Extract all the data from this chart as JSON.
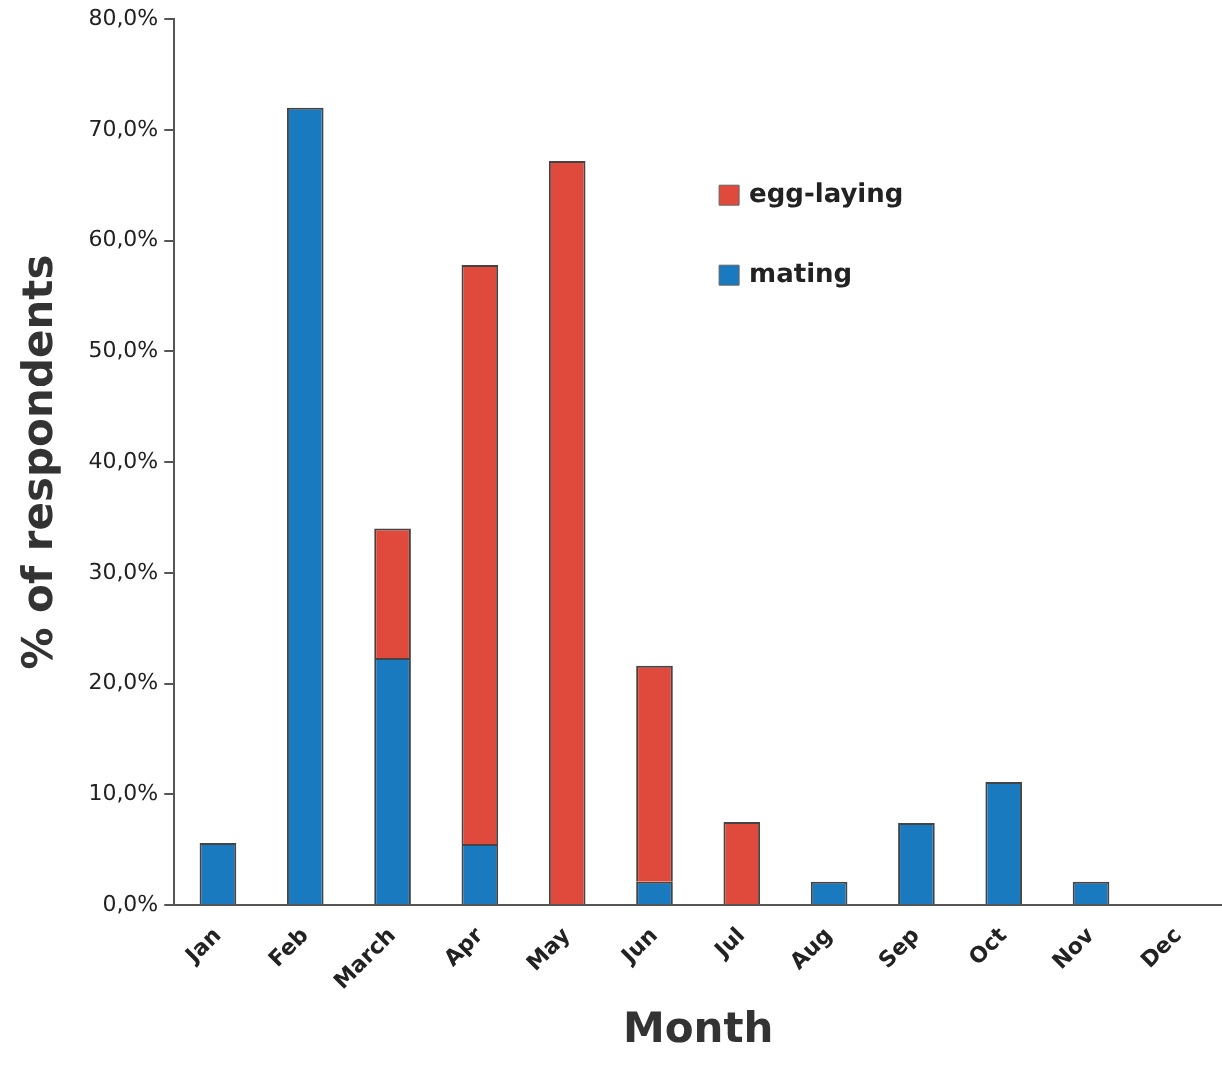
{
  "chart_data": {
    "type": "bar",
    "stacked": true,
    "xlabel": "Month",
    "ylabel": "% of respondents",
    "categories": [
      "Jan",
      "Feb",
      "March",
      "Apr",
      "May",
      "Jun",
      "Jul",
      "Aug",
      "Sep",
      "Oct",
      "Nov",
      "Dec"
    ],
    "series": [
      {
        "name": "mating",
        "color": "#1a7abf",
        "values": [
          5.6,
          72.0,
          22.3,
          5.5,
          null,
          2.1,
          null,
          2.1,
          7.4,
          11.1,
          2.1,
          null
        ]
      },
      {
        "name": "egg-laying",
        "color": "#e04a3c",
        "values": [
          null,
          null,
          11.7,
          52.3,
          67.2,
          19.5,
          7.5,
          null,
          null,
          null,
          null,
          null
        ]
      }
    ],
    "ylim": [
      0,
      80
    ],
    "yticks": [
      {
        "value": 0,
        "label": "0,0%"
      },
      {
        "value": 10,
        "label": "10,0%"
      },
      {
        "value": 20,
        "label": "20,0%"
      },
      {
        "value": 30,
        "label": "30,0%"
      },
      {
        "value": 40,
        "label": "40,0%"
      },
      {
        "value": 50,
        "label": "50,0%"
      },
      {
        "value": 60,
        "label": "60,0%"
      },
      {
        "value": 70,
        "label": "70,0%"
      },
      {
        "value": 80,
        "label": "80,0%"
      }
    ],
    "grid": false,
    "legend": "top right"
  }
}
